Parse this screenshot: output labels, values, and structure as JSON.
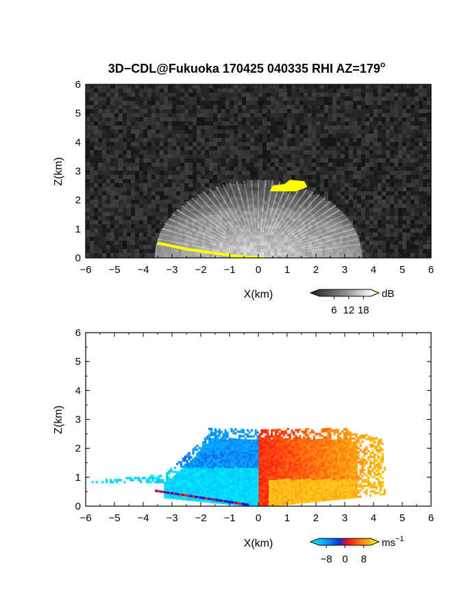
{
  "title": "3D−CDL@Fukuoka 170425 040335 RHI AZ=179",
  "title_superscript": "o",
  "colors": {
    "background": "#ffffff",
    "echo_yellow": "#ffff00",
    "axis": "#000000"
  },
  "chart_data": [
    {
      "type": "heatmap",
      "name": "reflectivity-panel",
      "xlabel": "X(km)",
      "ylabel": "Z(km)",
      "xlim": [
        -6,
        6
      ],
      "ylim": [
        0,
        6
      ],
      "x_ticks": [
        -6,
        -5,
        -4,
        -3,
        -2,
        -1,
        0,
        1,
        2,
        3,
        4,
        5,
        6
      ],
      "x_tick_labels": [
        "−6",
        "−5",
        "−4",
        "−3",
        "−2",
        "−1",
        "0",
        "1",
        "2",
        "3",
        "4",
        "5",
        "6"
      ],
      "y_ticks": [
        0,
        1,
        2,
        3,
        4,
        5,
        6
      ],
      "y_tick_labels": [
        "0",
        "1",
        "2",
        "3",
        "4",
        "5",
        "6"
      ],
      "colorbar": {
        "unit": "dB",
        "ticks": [
          6,
          12,
          18
        ],
        "tick_labels": [
          "6",
          "12",
          "18"
        ],
        "range": [
          0,
          21
        ],
        "colormap": "grayscale"
      },
      "features": {
        "cloud_base_arc": {
          "x_range": [
            -3.6,
            3.6
          ],
          "top_km": 2.7
        },
        "cloud_echo_yellow": [
          [
            0.4,
            2.3
          ],
          [
            0.5,
            2.5
          ],
          [
            0.9,
            2.55
          ],
          [
            1.1,
            2.7
          ],
          [
            1.6,
            2.65
          ],
          [
            1.7,
            2.45
          ],
          [
            1.3,
            2.3
          ],
          [
            0.7,
            2.3
          ]
        ],
        "ground_echo_yellow": [
          [
            -3.5,
            0.52
          ],
          [
            -2.5,
            0.3
          ],
          [
            -1.5,
            0.16
          ],
          [
            -0.7,
            0.05
          ],
          [
            0.2,
            0.0
          ]
        ]
      }
    },
    {
      "type": "heatmap",
      "name": "doppler-velocity-panel",
      "xlabel": "X(km)",
      "ylabel": "Z(km)",
      "xlim": [
        -6,
        6
      ],
      "ylim": [
        0,
        6
      ],
      "x_ticks": [
        -6,
        -5,
        -4,
        -3,
        -2,
        -1,
        0,
        1,
        2,
        3,
        4,
        5,
        6
      ],
      "x_tick_labels": [
        "−6",
        "−5",
        "−4",
        "−3",
        "−2",
        "−1",
        "0",
        "1",
        "2",
        "3",
        "4",
        "5",
        "6"
      ],
      "y_ticks": [
        0,
        1,
        2,
        3,
        4,
        5,
        6
      ],
      "y_tick_labels": [
        "0",
        "1",
        "2",
        "3",
        "4",
        "5",
        "6"
      ],
      "colorbar": {
        "unit": "ms",
        "unit_superscript": "−1",
        "ticks": [
          -8,
          0,
          8
        ],
        "tick_labels": [
          "−8",
          "0",
          "8"
        ],
        "range": [
          -11,
          11
        ],
        "colormap": "blue-red-yellow"
      },
      "features": {
        "approaching_region": {
          "x_range": [
            -5.8,
            0.0
          ],
          "top_km": 2.7,
          "velocity_ms": -6
        },
        "receding_region": {
          "x_range": [
            0.0,
            4.3
          ],
          "top_km": 2.7,
          "velocity_ms": 4
        },
        "outer_aloft_echo": {
          "x_range": [
            3.0,
            4.3
          ],
          "velocity_ms": 8
        }
      }
    }
  ]
}
